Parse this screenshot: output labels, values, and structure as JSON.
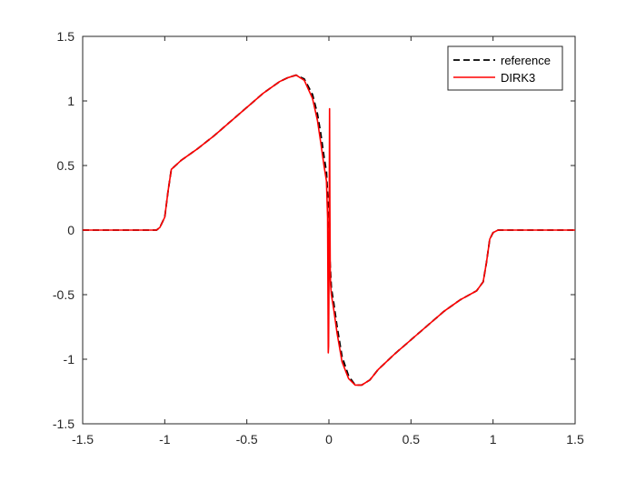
{
  "chart_data": {
    "type": "line",
    "title": "",
    "xlabel": "",
    "ylabel": "",
    "xlim": [
      -1.5,
      1.5
    ],
    "ylim": [
      -1.5,
      1.5
    ],
    "xticks": [
      -1.5,
      -1,
      -0.5,
      0,
      0.5,
      1,
      1.5
    ],
    "xtick_labels": [
      "-1.5",
      "-1",
      "-0.5",
      "0",
      "0.5",
      "1",
      "1.5"
    ],
    "yticks": [
      -1.5,
      -1,
      -0.5,
      0,
      0.5,
      1,
      1.5
    ],
    "ytick_labels": [
      "-1.5",
      "-1",
      "-0.5",
      "0",
      "0.5",
      "1",
      "1.5"
    ],
    "grid": false,
    "legend_position": "top-right",
    "series": [
      {
        "name": "reference",
        "color": "#000000",
        "style": "dashed",
        "x": [
          -1.5,
          -1.05,
          -1.03,
          -1.0,
          -0.98,
          -0.96,
          -0.9,
          -0.8,
          -0.7,
          -0.6,
          -0.5,
          -0.4,
          -0.3,
          -0.25,
          -0.2,
          -0.15,
          -0.1,
          -0.07,
          -0.05,
          -0.03,
          -0.015,
          -0.005,
          0.0,
          0.005,
          0.015,
          0.03,
          0.05,
          0.08,
          0.12,
          0.16,
          0.2,
          0.25,
          0.3,
          0.4,
          0.5,
          0.6,
          0.7,
          0.8,
          0.9,
          0.94,
          0.96,
          0.98,
          1.0,
          1.03,
          1.05,
          1.5
        ],
        "y": [
          0,
          0,
          0.02,
          0.1,
          0.3,
          0.47,
          0.54,
          0.63,
          0.73,
          0.84,
          0.95,
          1.06,
          1.15,
          1.18,
          1.2,
          1.17,
          1.05,
          0.9,
          0.75,
          0.57,
          0.45,
          0.2,
          0.0,
          -0.2,
          -0.45,
          -0.57,
          -0.75,
          -0.98,
          -1.13,
          -1.2,
          -1.2,
          -1.16,
          -1.08,
          -0.96,
          -0.85,
          -0.74,
          -0.63,
          -0.54,
          -0.47,
          -0.4,
          -0.25,
          -0.07,
          -0.02,
          0,
          0,
          0
        ]
      },
      {
        "name": "DIRK3",
        "color": "#ff0000",
        "style": "solid",
        "x": [
          -1.5,
          -1.05,
          -1.03,
          -1.0,
          -0.98,
          -0.96,
          -0.9,
          -0.8,
          -0.7,
          -0.6,
          -0.5,
          -0.4,
          -0.3,
          -0.25,
          -0.2,
          -0.15,
          -0.1,
          -0.07,
          -0.05,
          -0.03,
          -0.015,
          -0.008,
          -0.004,
          -0.002,
          0.0,
          0.002,
          0.004,
          0.006,
          0.008,
          0.01,
          0.015,
          0.03,
          0.05,
          0.08,
          0.12,
          0.16,
          0.2,
          0.25,
          0.3,
          0.4,
          0.5,
          0.6,
          0.7,
          0.8,
          0.9,
          0.94,
          0.96,
          0.98,
          1.0,
          1.03,
          1.05,
          1.5
        ],
        "y": [
          0,
          0,
          0.02,
          0.1,
          0.3,
          0.47,
          0.54,
          0.63,
          0.73,
          0.84,
          0.95,
          1.06,
          1.15,
          1.18,
          1.2,
          1.16,
          1.02,
          0.85,
          0.68,
          0.5,
          0.38,
          0.1,
          -0.95,
          -0.9,
          -0.5,
          0.2,
          0.94,
          0.2,
          -0.3,
          -0.42,
          -0.5,
          -0.62,
          -0.8,
          -1.02,
          -1.15,
          -1.2,
          -1.2,
          -1.16,
          -1.08,
          -0.96,
          -0.85,
          -0.74,
          -0.63,
          -0.54,
          -0.47,
          -0.4,
          -0.25,
          -0.07,
          -0.02,
          0,
          0,
          0
        ]
      }
    ]
  }
}
